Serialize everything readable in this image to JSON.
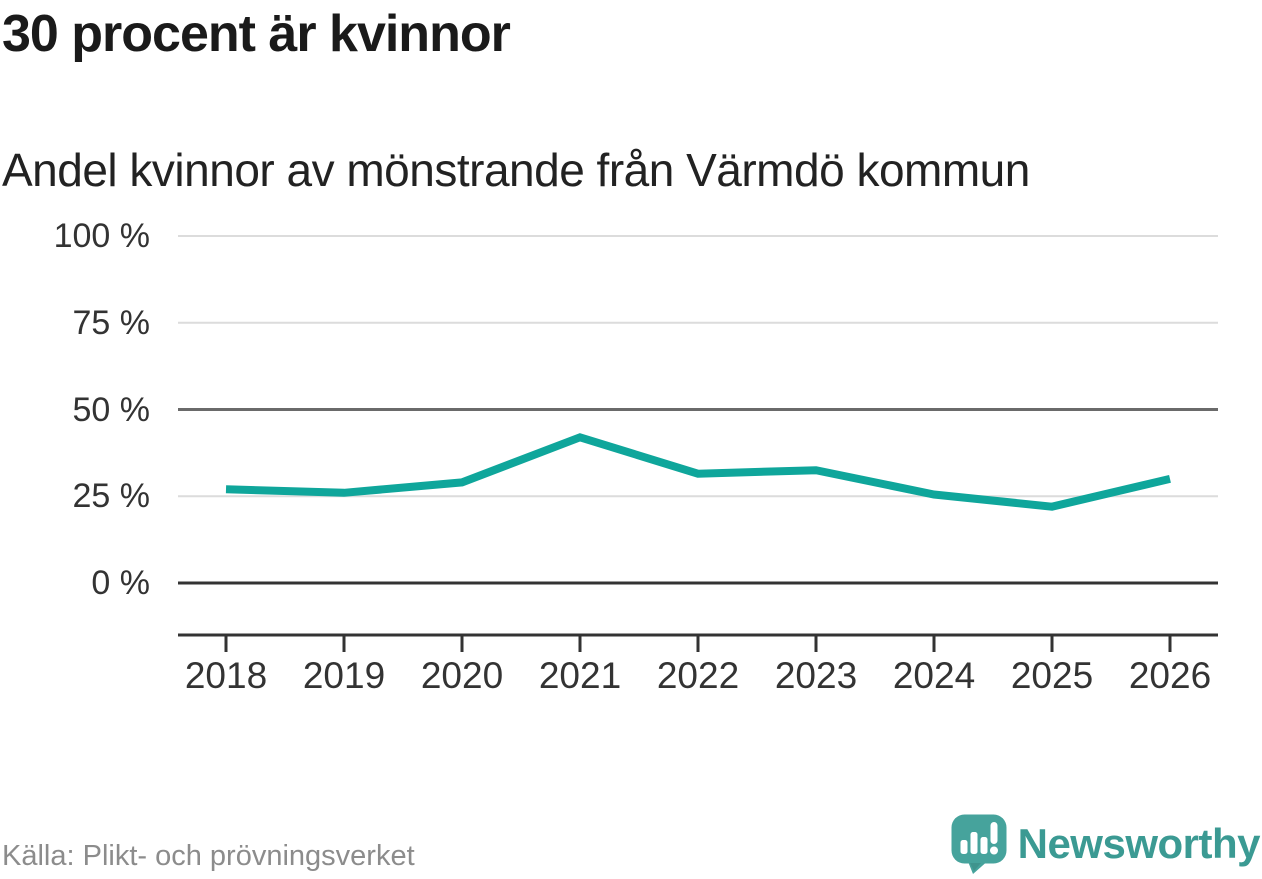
{
  "chart_data": {
    "type": "line",
    "title": "30 procent är kvinnor",
    "subtitle": "Andel kvinnor av mönstrande från Värmdö kommun",
    "source": "Källa: Plikt- och prövningsverket",
    "x": [
      2018,
      2019,
      2020,
      2021,
      2022,
      2023,
      2024,
      2025,
      2026
    ],
    "series": [
      {
        "name": "Andel kvinnor av mönstrande",
        "values": [
          27,
          26,
          29,
          42,
          31.5,
          32.5,
          25.5,
          22,
          30
        ],
        "color": "#0fa69b"
      }
    ],
    "ylim": [
      0,
      100
    ],
    "y_ticks": [
      {
        "value": 100,
        "label": "100 %"
      },
      {
        "value": 75,
        "label": "75 %"
      },
      {
        "value": 50,
        "label": "50 %"
      },
      {
        "value": 25,
        "label": "25 %"
      },
      {
        "value": 0,
        "label": "0 %"
      }
    ],
    "grid": "horizontal",
    "legend": "none"
  },
  "colors": {
    "grid_light": "#dcdcdc",
    "grid_mid": "#6a6a6a",
    "grid_zero": "#333333",
    "axis": "#333333"
  },
  "branding": {
    "name": "Newsworthy",
    "icon": "newsworthy-logo-icon",
    "color": "#3b9a93",
    "icon_color": "#46a39c"
  }
}
